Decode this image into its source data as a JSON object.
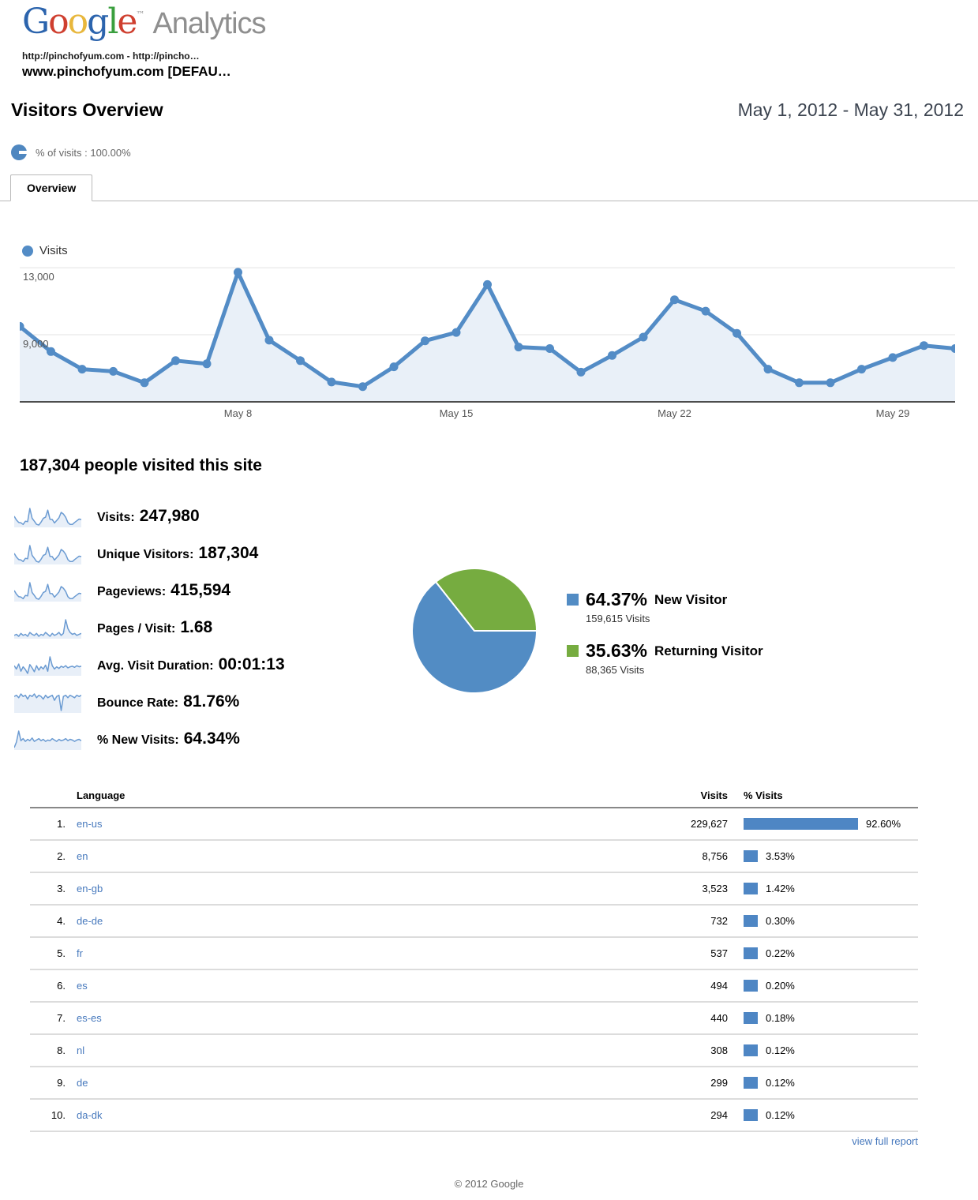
{
  "header": {
    "logo": {
      "letters": [
        {
          "ch": "G",
          "color": "#2c64ad"
        },
        {
          "ch": "o",
          "color": "#cf3f2f"
        },
        {
          "ch": "o",
          "color": "#e8b73c"
        },
        {
          "ch": "g",
          "color": "#2c64ad"
        },
        {
          "ch": "l",
          "color": "#3a9f3e"
        },
        {
          "ch": "e",
          "color": "#cf3f2f"
        }
      ],
      "tm": "™",
      "analytics": "Analytics",
      "analytics_color": "#8f8f8f"
    },
    "profile_line1": "http://pinchofyum.com - http://pincho…",
    "profile_line2": "www.pinchofyum.com [DEFAU…"
  },
  "report": {
    "title": "Visitors Overview",
    "date_range": "May 1, 2012 - May 31, 2012",
    "segment_label": "% of visits : 100.00%",
    "tab": "Overview"
  },
  "chart_data": [
    {
      "type": "line",
      "legend": "Visits",
      "x": [
        "May 1",
        "May 2",
        "May 3",
        "May 4",
        "May 5",
        "May 6",
        "May 7",
        "May 8",
        "May 9",
        "May 10",
        "May 11",
        "May 12",
        "May 13",
        "May 14",
        "May 15",
        "May 16",
        "May 17",
        "May 18",
        "May 19",
        "May 20",
        "May 21",
        "May 22",
        "May 23",
        "May 24",
        "May 25",
        "May 26",
        "May 27",
        "May 28",
        "May 29",
        "May 30",
        "May 31"
      ],
      "values": [
        9500,
        8000,
        6950,
        6820,
        6140,
        7460,
        7270,
        12730,
        8680,
        7460,
        6180,
        5910,
        7090,
        8640,
        9140,
        12000,
        8270,
        8180,
        6770,
        7770,
        8860,
        11090,
        10410,
        9090,
        6950,
        6140,
        6140,
        6950,
        7640,
        8360,
        8180
      ],
      "ylim": [
        5000,
        13100
      ],
      "yticks": [
        {
          "value": 13000,
          "label": "13,000"
        },
        {
          "value": 9000,
          "label": "9,000"
        }
      ],
      "xticks": [
        {
          "index": 7,
          "label": "May 8"
        },
        {
          "index": 14,
          "label": "May 15"
        },
        {
          "index": 21,
          "label": "May 22"
        },
        {
          "index": 28,
          "label": "May 29"
        }
      ],
      "grid": true,
      "line_color": "#538cc6",
      "fill_color": "#e9f0f8"
    },
    {
      "type": "pie",
      "start_angle_deg": 90,
      "direction": "clockwise",
      "slices": [
        {
          "label": "New Visitor",
          "pct": 64.37,
          "pct_label": "64.37%",
          "visits_label": "159,615 Visits",
          "color": "#528cc4"
        },
        {
          "label": "Returning Visitor",
          "pct": 35.63,
          "pct_label": "35.63%",
          "visits_label": "88,365 Visits",
          "color": "#76ac40"
        }
      ]
    }
  ],
  "summary": {
    "headline": "187,304 people visited this site",
    "metrics": [
      {
        "label": "Visits:",
        "value": "247,980",
        "spark": [
          9500,
          8000,
          6950,
          6820,
          6140,
          7460,
          7270,
          12730,
          8680,
          7460,
          6180,
          5910,
          7090,
          8640,
          9140,
          12000,
          8270,
          8180,
          6770,
          7770,
          8860,
          11090,
          10410,
          9090,
          6950,
          6140,
          6140,
          6950,
          7640,
          8360,
          8180
        ]
      },
      {
        "label": "Unique Visitors:",
        "value": "187,304",
        "spark": [
          9500,
          8000,
          6950,
          6820,
          6140,
          7460,
          7270,
          12730,
          8680,
          7460,
          6180,
          5910,
          7090,
          8640,
          9140,
          12000,
          8270,
          8180,
          6770,
          7770,
          8860,
          11090,
          10410,
          9090,
          6950,
          6140,
          6140,
          6950,
          7640,
          8360,
          8180
        ]
      },
      {
        "label": "Pageviews:",
        "value": "415,594",
        "spark": [
          9500,
          8000,
          6950,
          6820,
          6140,
          7460,
          7270,
          12730,
          8680,
          7460,
          6180,
          5910,
          7090,
          8640,
          9140,
          12000,
          8270,
          8180,
          6770,
          7770,
          8860,
          11090,
          10410,
          9090,
          6950,
          6140,
          6140,
          6950,
          7640,
          8360,
          8180
        ]
      },
      {
        "label": "Pages / Visit:",
        "value": "1.68",
        "spark": [
          1.63,
          1.64,
          1.62,
          1.65,
          1.63,
          1.64,
          1.62,
          1.66,
          1.64,
          1.63,
          1.65,
          1.62,
          1.64,
          1.63,
          1.66,
          1.64,
          1.62,
          1.65,
          1.63,
          1.64,
          1.66,
          1.63,
          1.65,
          1.79,
          1.7,
          1.66,
          1.64,
          1.65,
          1.63,
          1.64,
          1.65
        ]
      },
      {
        "label": "Avg. Visit Duration:",
        "value": "00:01:13",
        "spark": [
          72,
          66,
          75,
          62,
          70,
          65,
          58,
          74,
          68,
          61,
          72,
          64,
          70,
          66,
          73,
          62,
          88,
          72,
          66,
          70,
          67,
          71,
          69,
          72,
          68,
          70,
          71,
          69,
          72,
          70,
          71
        ]
      },
      {
        "label": "Bounce Rate:",
        "value": "81.76%",
        "spark": [
          81.9,
          82.0,
          81.8,
          82.1,
          81.9,
          82.0,
          81.7,
          82.0,
          81.9,
          82.1,
          81.8,
          82.0,
          81.9,
          81.7,
          82.0,
          81.8,
          81.9,
          82.0,
          81.6,
          81.9,
          82.0,
          80.8,
          81.9,
          82.0,
          81.8,
          82.0,
          81.9,
          81.8,
          82.0,
          81.9,
          82.0
        ]
      },
      {
        "label": "% New Visits:",
        "value": "64.34%",
        "spark": [
          63.2,
          64.0,
          65.6,
          64.2,
          64.5,
          64.1,
          64.4,
          64.2,
          64.6,
          64.1,
          64.3,
          64.5,
          64.2,
          64.4,
          64.1,
          64.3,
          64.2,
          64.5,
          64.3,
          64.1,
          64.4,
          64.2,
          64.3,
          64.5,
          64.2,
          64.4,
          64.3,
          64.1,
          64.3,
          64.4,
          64.2
        ]
      }
    ]
  },
  "table": {
    "columns": [
      "Language",
      "Visits",
      "% Visits"
    ],
    "rows": [
      {
        "rank": "1.",
        "language": "en-us",
        "visits": "229,627",
        "pct": "92.60%",
        "pct_value": 92.6
      },
      {
        "rank": "2.",
        "language": "en",
        "visits": "8,756",
        "pct": "3.53%",
        "pct_value": 3.53
      },
      {
        "rank": "3.",
        "language": "en-gb",
        "visits": "3,523",
        "pct": "1.42%",
        "pct_value": 1.42
      },
      {
        "rank": "4.",
        "language": "de-de",
        "visits": "732",
        "pct": "0.30%",
        "pct_value": 0.3
      },
      {
        "rank": "5.",
        "language": "fr",
        "visits": "537",
        "pct": "0.22%",
        "pct_value": 0.22
      },
      {
        "rank": "6.",
        "language": "es",
        "visits": "494",
        "pct": "0.20%",
        "pct_value": 0.2
      },
      {
        "rank": "7.",
        "language": "es-es",
        "visits": "440",
        "pct": "0.18%",
        "pct_value": 0.18
      },
      {
        "rank": "8.",
        "language": "nl",
        "visits": "308",
        "pct": "0.12%",
        "pct_value": 0.12
      },
      {
        "rank": "9.",
        "language": "de",
        "visits": "299",
        "pct": "0.12%",
        "pct_value": 0.12
      },
      {
        "rank": "10.",
        "language": "da-dk",
        "visits": "294",
        "pct": "0.12%",
        "pct_value": 0.12
      }
    ],
    "view_full_report": "view full report"
  },
  "footer": {
    "copyright": "© 2012 Google"
  }
}
